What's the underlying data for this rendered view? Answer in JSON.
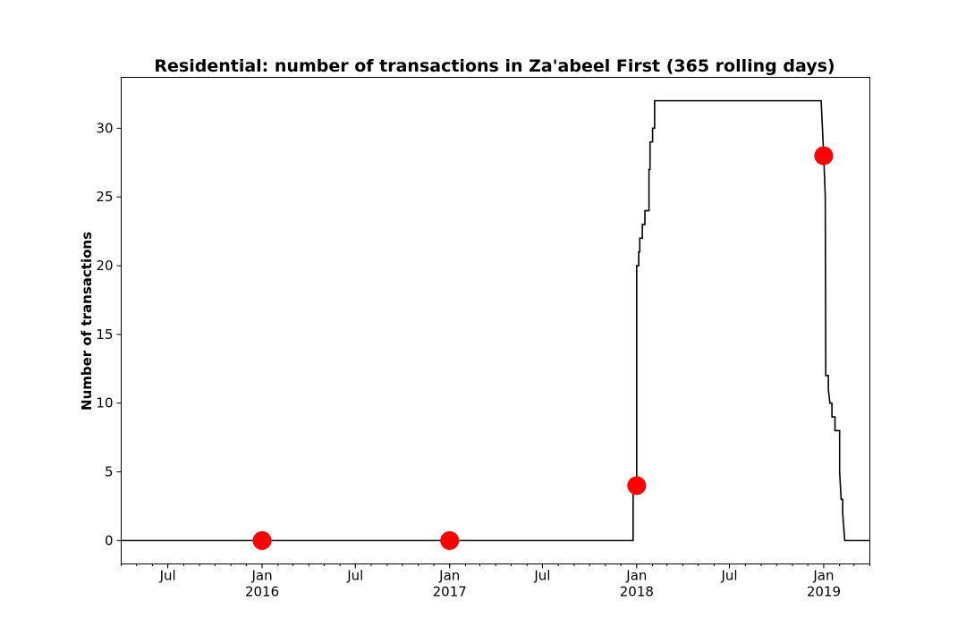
{
  "chart_data": {
    "type": "line",
    "title": "Residential: number of transactions in Za'abeel First (365 rolling days)",
    "xlabel": "",
    "ylabel": "Number of transactions",
    "xlim": [
      "2015-04-01",
      "2019-04-01"
    ],
    "ylim": [
      -1.7,
      33.7
    ],
    "grid": false,
    "legend": "none",
    "y_ticks": [
      0,
      5,
      10,
      15,
      20,
      25,
      30
    ],
    "y_tick_labels": [
      "0",
      "5",
      "10",
      "15",
      "20",
      "25",
      "30"
    ],
    "x_ticks": [
      {
        "date": "2015-07-01",
        "label": "Jul",
        "year": ""
      },
      {
        "date": "2016-01-01",
        "label": "Jan",
        "year": "2016"
      },
      {
        "date": "2016-07-01",
        "label": "Jul",
        "year": ""
      },
      {
        "date": "2017-01-01",
        "label": "Jan",
        "year": "2017"
      },
      {
        "date": "2017-07-01",
        "label": "Jul",
        "year": ""
      },
      {
        "date": "2018-01-01",
        "label": "Jan",
        "year": "2018"
      },
      {
        "date": "2018-07-01",
        "label": "Jul",
        "year": ""
      },
      {
        "date": "2019-01-01",
        "label": "Jan",
        "year": "2019"
      }
    ],
    "series": [
      {
        "line_color": "#000000",
        "points": [
          {
            "x": "2015-04-01",
            "y": 0
          },
          {
            "x": "2017-12-25",
            "y": 0
          },
          {
            "x": "2017-12-25",
            "y": 4
          },
          {
            "x": "2018-01-01",
            "y": 4
          },
          {
            "x": "2018-01-01",
            "y": 20
          },
          {
            "x": "2018-01-05",
            "y": 20
          },
          {
            "x": "2018-01-05",
            "y": 21
          },
          {
            "x": "2018-01-07",
            "y": 21
          },
          {
            "x": "2018-01-07",
            "y": 22
          },
          {
            "x": "2018-01-12",
            "y": 22
          },
          {
            "x": "2018-01-12",
            "y": 23
          },
          {
            "x": "2018-01-17",
            "y": 23
          },
          {
            "x": "2018-01-17",
            "y": 24
          },
          {
            "x": "2018-01-25",
            "y": 24
          },
          {
            "x": "2018-01-25",
            "y": 27
          },
          {
            "x": "2018-01-27",
            "y": 27
          },
          {
            "x": "2018-01-27",
            "y": 29
          },
          {
            "x": "2018-02-01",
            "y": 29
          },
          {
            "x": "2018-02-01",
            "y": 30
          },
          {
            "x": "2018-02-05",
            "y": 30
          },
          {
            "x": "2018-02-05",
            "y": 32
          },
          {
            "x": "2018-12-27",
            "y": 32
          },
          {
            "x": "2019-01-01",
            "y": 28
          },
          {
            "x": "2019-01-04",
            "y": 25
          },
          {
            "x": "2019-01-05",
            "y": 12
          },
          {
            "x": "2019-01-10",
            "y": 12
          },
          {
            "x": "2019-01-10",
            "y": 11
          },
          {
            "x": "2019-01-13",
            "y": 10
          },
          {
            "x": "2019-01-17",
            "y": 10
          },
          {
            "x": "2019-01-17",
            "y": 9
          },
          {
            "x": "2019-01-23",
            "y": 9
          },
          {
            "x": "2019-01-23",
            "y": 8
          },
          {
            "x": "2019-02-01",
            "y": 8
          },
          {
            "x": "2019-02-01",
            "y": 5
          },
          {
            "x": "2019-02-04",
            "y": 3
          },
          {
            "x": "2019-02-07",
            "y": 3
          },
          {
            "x": "2019-02-07",
            "y": 2
          },
          {
            "x": "2019-02-11",
            "y": 0
          },
          {
            "x": "2019-04-01",
            "y": 0
          }
        ]
      },
      {
        "marker_color": "#ff0000",
        "points": [
          {
            "x": "2016-01-01",
            "y": 0
          },
          {
            "x": "2017-01-01",
            "y": 0
          },
          {
            "x": "2018-01-01",
            "y": 4
          },
          {
            "x": "2019-01-01",
            "y": 28
          }
        ]
      }
    ]
  }
}
